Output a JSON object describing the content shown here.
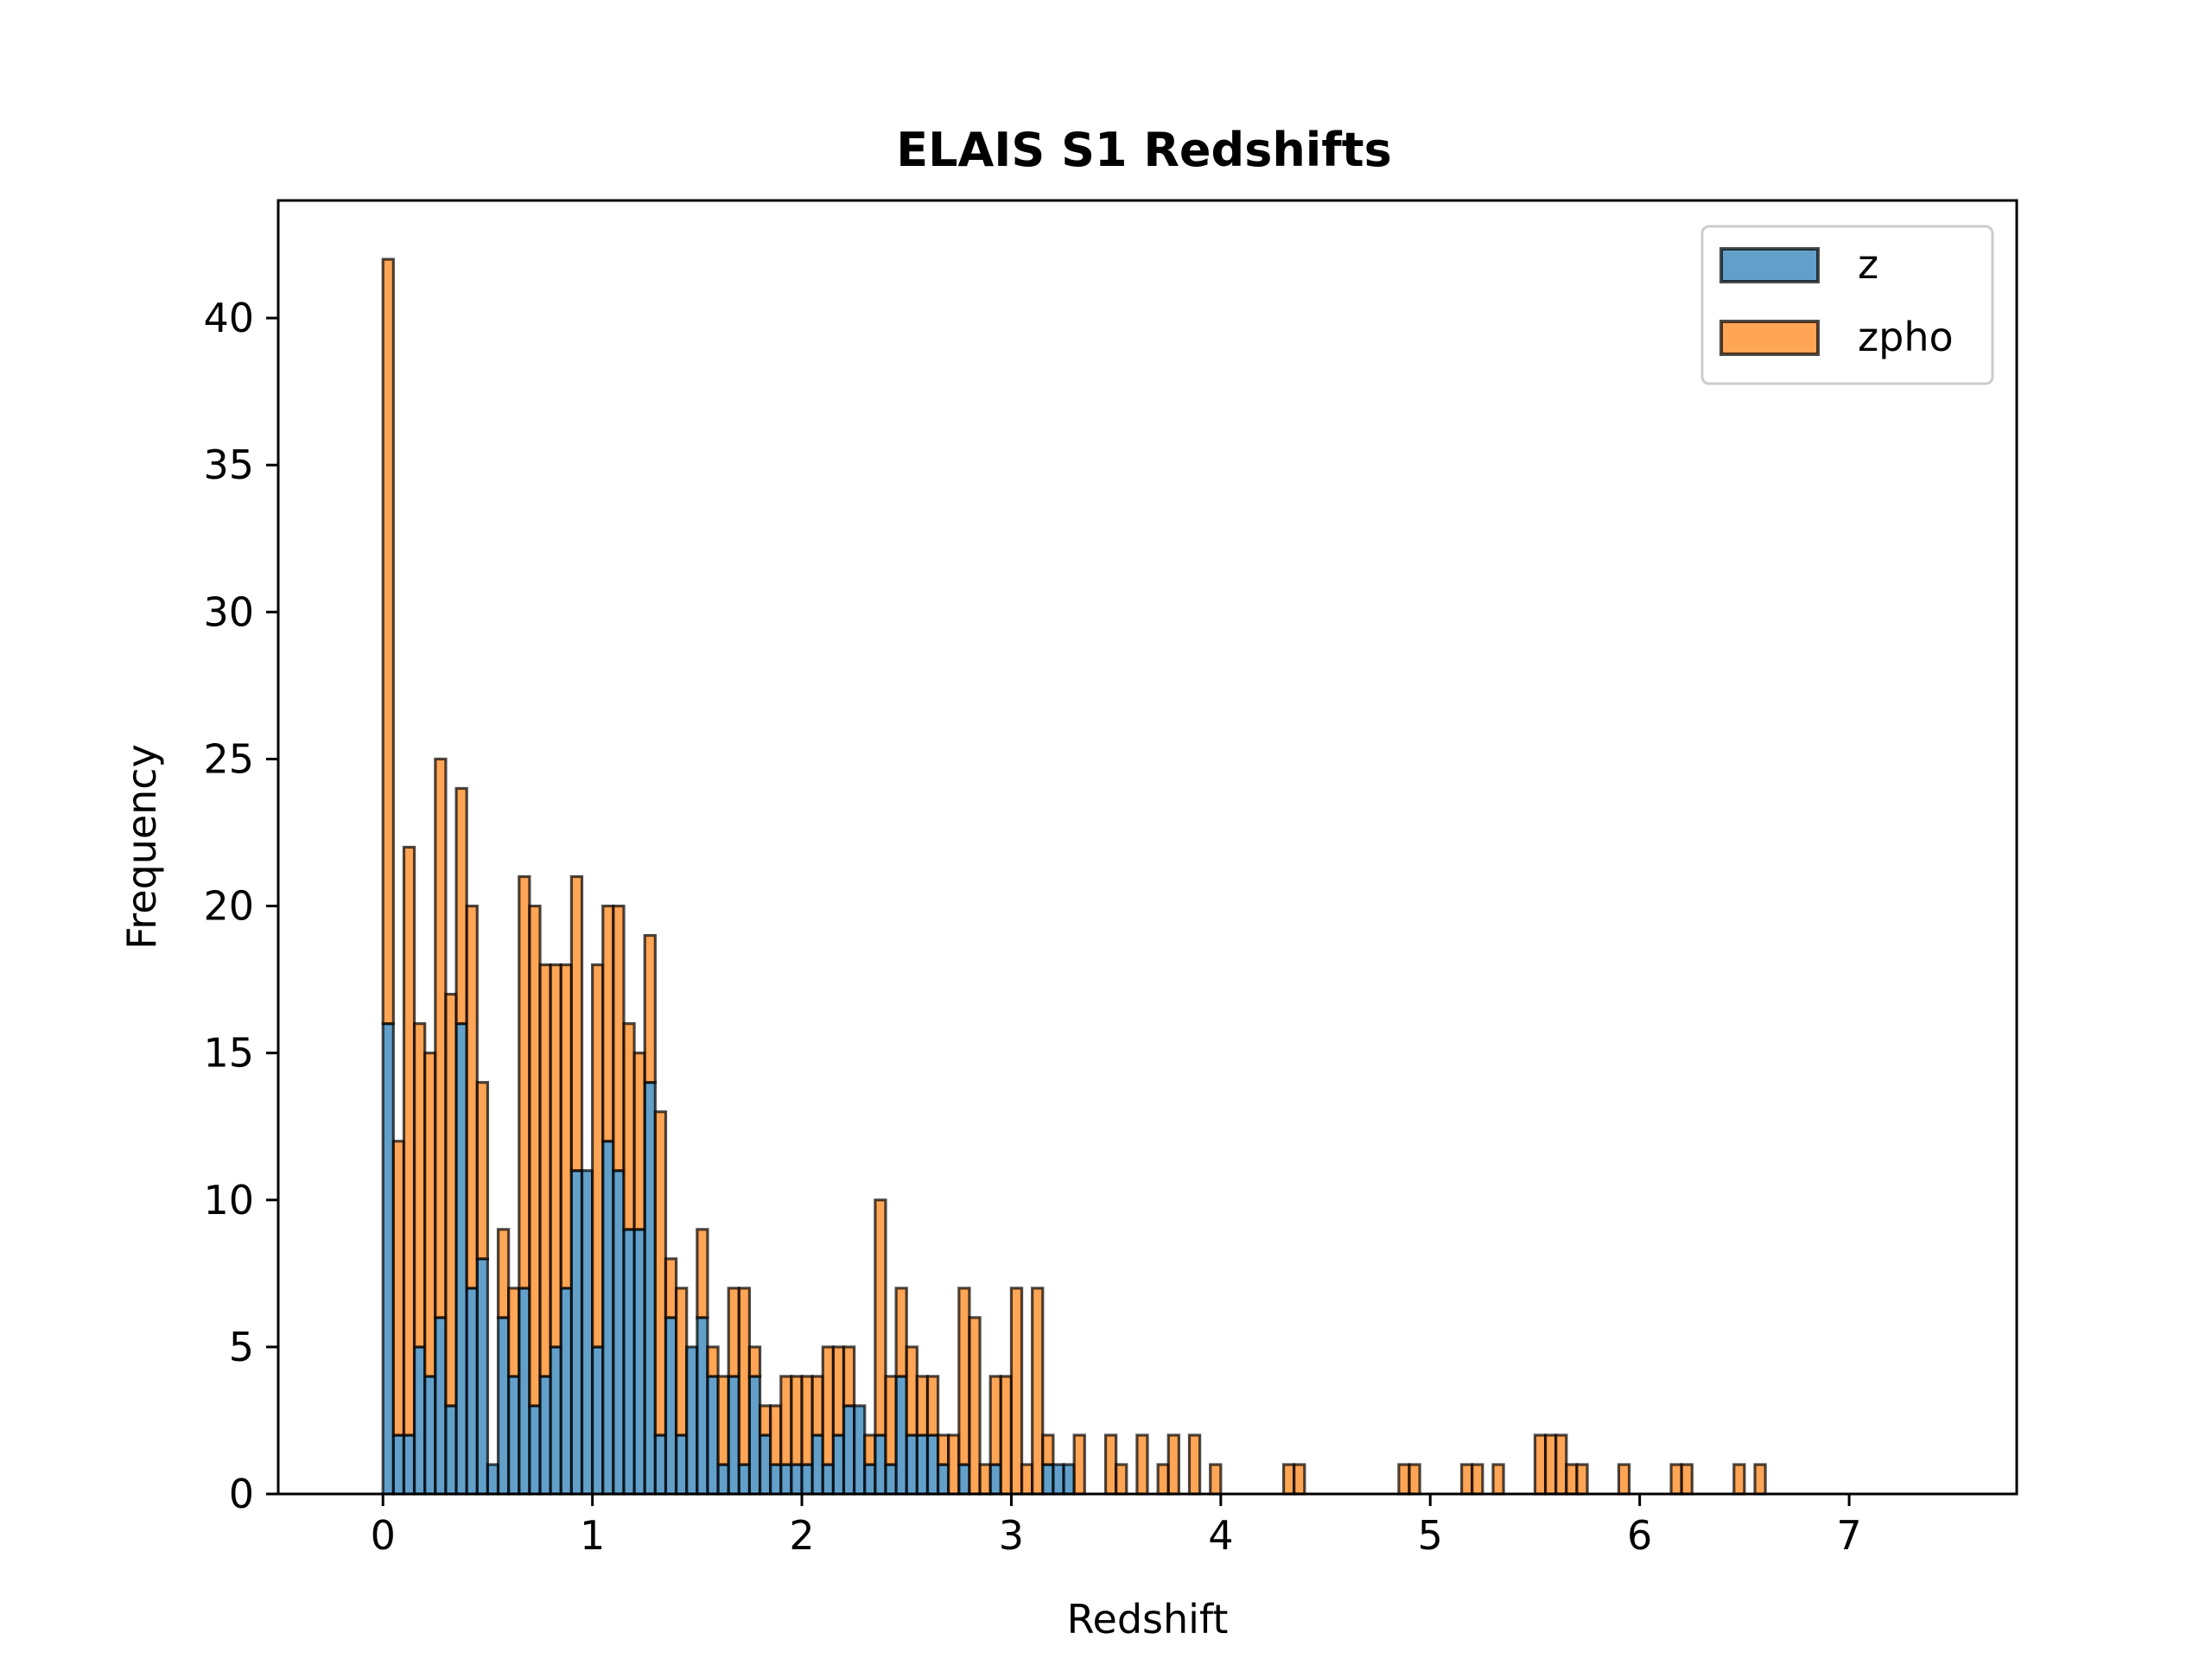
{
  "chart_data": {
    "type": "bar",
    "subtype": "stacked-histogram",
    "title": "ELAIS S1 Redshifts",
    "xlabel": "Redshift",
    "ylabel": "Frequency",
    "xlim": [
      -0.5,
      7.8
    ],
    "ylim": [
      0,
      44
    ],
    "xticks": [
      0,
      1,
      2,
      3,
      4,
      5,
      6,
      7
    ],
    "yticks": [
      0,
      5,
      10,
      15,
      20,
      25,
      30,
      35,
      40
    ],
    "bin_start": 0,
    "bin_width": 0.05,
    "grid": false,
    "legend_position": "top-right",
    "series": [
      {
        "name": "z",
        "color": "#1f77b4",
        "values": [
          16,
          2,
          2,
          5,
          4,
          6,
          3,
          16,
          7,
          8,
          1,
          6,
          4,
          7,
          3,
          4,
          5,
          7,
          11,
          11,
          5,
          12,
          11,
          9,
          9,
          14,
          2,
          6,
          2,
          5,
          6,
          4,
          1,
          4,
          1,
          4,
          2,
          1,
          1,
          1,
          1,
          2,
          1,
          2,
          3,
          3,
          1,
          2,
          1,
          4,
          2,
          2,
          2,
          1,
          0,
          1,
          0,
          0,
          1,
          0,
          0,
          0,
          0,
          1,
          1,
          1,
          0,
          0,
          0,
          0,
          0,
          0,
          0,
          0,
          0,
          0,
          0,
          0,
          0,
          0,
          0,
          0,
          0,
          0,
          0,
          0,
          0,
          0,
          0,
          0,
          0,
          0,
          0,
          0,
          0,
          0,
          0,
          0,
          0,
          0,
          0,
          0,
          0,
          0,
          0,
          0,
          0,
          0,
          0,
          0,
          0,
          0,
          0,
          0,
          0,
          0,
          0,
          0,
          0,
          0,
          0,
          0,
          0,
          0,
          0,
          0,
          0,
          0,
          0,
          0,
          0,
          0,
          0,
          0,
          0,
          0,
          0,
          0,
          0,
          0,
          0,
          0,
          0,
          0,
          0,
          0,
          0,
          0,
          0
        ]
      },
      {
        "name": "zpho",
        "color": "#ff7f0e",
        "values": [
          26,
          10,
          20,
          11,
          11,
          19,
          14,
          8,
          13,
          6,
          0,
          3,
          3,
          14,
          17,
          14,
          13,
          11,
          10,
          0,
          13,
          8,
          9,
          7,
          6,
          5,
          11,
          2,
          5,
          0,
          3,
          1,
          3,
          3,
          6,
          1,
          1,
          2,
          3,
          3,
          3,
          2,
          4,
          3,
          2,
          0,
          1,
          8,
          3,
          3,
          3,
          2,
          2,
          1,
          2,
          6,
          6,
          1,
          3,
          4,
          7,
          1,
          7,
          1,
          0,
          0,
          2,
          0,
          0,
          2,
          1,
          0,
          2,
          0,
          1,
          2,
          0,
          2,
          0,
          1,
          0,
          0,
          0,
          0,
          0,
          0,
          1,
          1,
          0,
          0,
          0,
          0,
          0,
          0,
          0,
          0,
          0,
          1,
          1,
          0,
          0,
          0,
          0,
          1,
          1,
          0,
          1,
          0,
          0,
          0,
          2,
          2,
          2,
          1,
          1,
          0,
          0,
          0,
          1,
          0,
          0,
          0,
          0,
          1,
          1,
          0,
          0,
          0,
          0,
          1,
          0,
          1,
          0,
          0,
          0,
          0,
          0,
          0,
          0,
          0,
          0,
          0,
          0,
          0,
          0,
          0,
          0,
          0
        ]
      }
    ]
  }
}
